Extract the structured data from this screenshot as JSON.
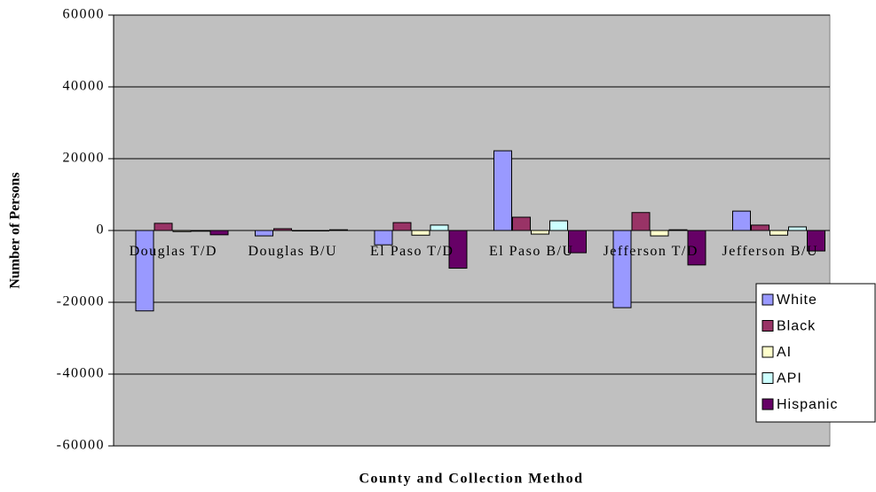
{
  "chart_data": {
    "type": "bar",
    "x_label": "County and Collection Method",
    "y_label": "Number of Persons",
    "categories": [
      "Douglas T/D",
      "Douglas B/U",
      "El Paso T/D",
      "El Paso B/U",
      "Jefferson T/D",
      "Jefferson B/U"
    ],
    "series": [
      {
        "name": "White",
        "color": "#9999ff",
        "values": [
          -22400,
          -1500,
          -4000,
          22200,
          -21500,
          5400
        ]
      },
      {
        "name": "Black",
        "color": "#993366",
        "values": [
          2000,
          500,
          2200,
          3700,
          5000,
          1500
        ]
      },
      {
        "name": "AI",
        "color": "#ffffcc",
        "values": [
          -300,
          -100,
          -1300,
          -1000,
          -1500,
          -1300
        ]
      },
      {
        "name": "API",
        "color": "#ccffff",
        "values": [
          -200,
          -100,
          1500,
          2700,
          200,
          1000
        ]
      },
      {
        "name": "Hispanic",
        "color": "#660066",
        "values": [
          -1200,
          200,
          -10500,
          -6200,
          -9600,
          -5700
        ]
      }
    ],
    "ylim": [
      -60000,
      60000
    ],
    "yticks": [
      -60000,
      -40000,
      -20000,
      0,
      20000,
      40000,
      60000
    ],
    "grid": true,
    "legend": "right"
  }
}
